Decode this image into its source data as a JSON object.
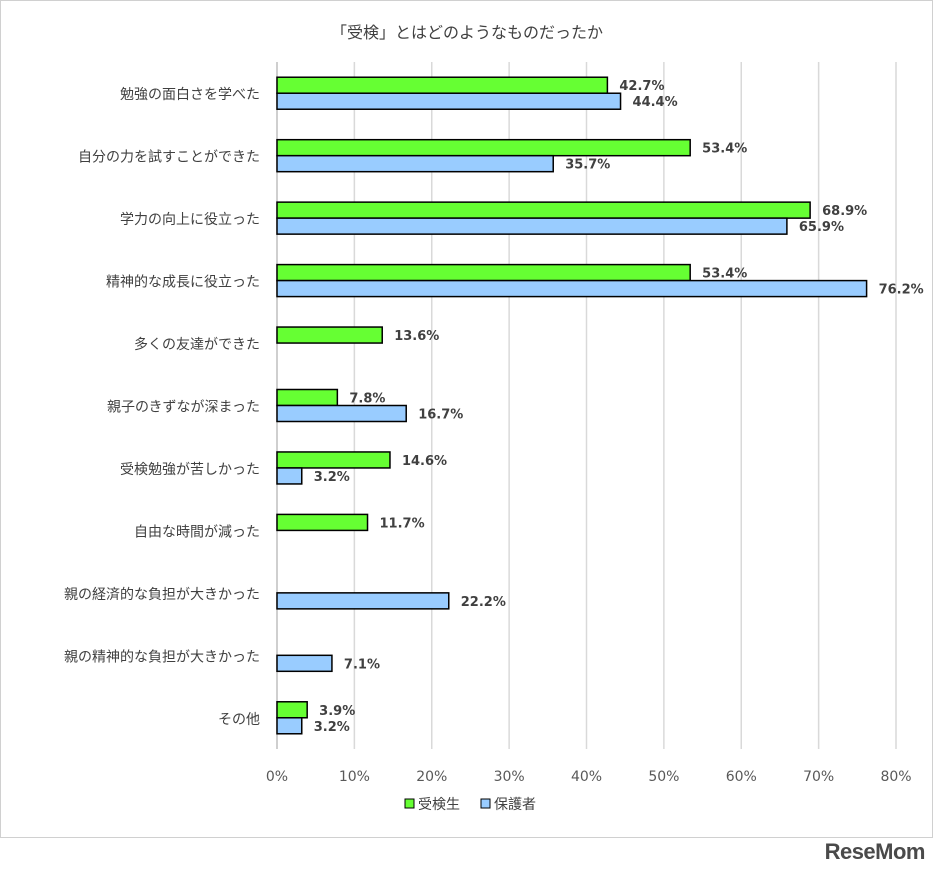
{
  "chart_data": {
    "type": "bar",
    "orientation": "horizontal",
    "title": "「受検」とはどのようなものだったか",
    "categories": [
      "勉強の面白さを学べた",
      "自分の力を試すことができた",
      "学力の向上に役立った",
      "精神的な成長に役立った",
      "多くの友達ができた",
      "親子のきずなが深まった",
      "受検勉強が苦しかった",
      "自由な時間が減った",
      "親の経済的な負担が大きかった",
      "親の精神的な負担が大きかった",
      "その他"
    ],
    "series": [
      {
        "name": "受検生",
        "color": "#66ff33",
        "values": [
          42.7,
          53.4,
          68.9,
          53.4,
          13.6,
          7.8,
          14.6,
          11.7,
          null,
          null,
          3.9
        ],
        "labels": [
          "42.7%",
          "53.4%",
          "68.9%",
          "53.4%",
          "13.6%",
          "7.8%",
          "14.6%",
          "11.7%",
          null,
          null,
          "3.9%"
        ]
      },
      {
        "name": "保護者",
        "color": "#99ccff",
        "values": [
          44.4,
          35.7,
          65.9,
          76.2,
          null,
          16.7,
          3.2,
          null,
          22.2,
          7.1,
          3.2
        ],
        "labels": [
          "44.4%",
          "35.7%",
          "65.9%",
          "76.2%",
          null,
          "16.7%",
          "3.2%",
          null,
          "22.2%",
          "7.1%",
          "3.2%"
        ]
      }
    ],
    "xlim": [
      0,
      80
    ],
    "xticks": [
      "0%",
      "10%",
      "20%",
      "30%",
      "40%",
      "50%",
      "60%",
      "70%",
      "80%"
    ],
    "grid": true,
    "legend_position": "bottom"
  },
  "brand": {
    "text": "ReseMom"
  }
}
